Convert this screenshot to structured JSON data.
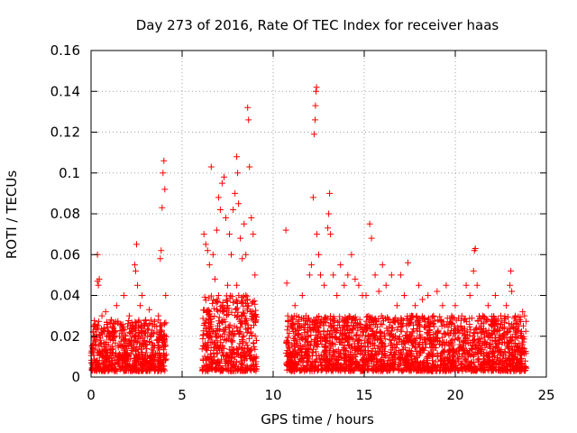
{
  "chart_data": {
    "type": "scatter",
    "title": "Day 273 of 2016, Rate Of TEC Index for receiver haas",
    "xlabel": "GPS time / hours",
    "ylabel": "ROTI / TECUs",
    "xlim": [
      0,
      25
    ],
    "ylim": [
      0,
      0.16
    ],
    "xticks": [
      0,
      5,
      10,
      15,
      20,
      25
    ],
    "xtick_labels": [
      "0",
      "5",
      "10",
      "15",
      "20",
      "25"
    ],
    "yticks": [
      0,
      0.02,
      0.04,
      0.06,
      0.08,
      0.1,
      0.12,
      0.14,
      0.16
    ],
    "ytick_labels": [
      "0",
      "0.02",
      "0.04",
      "0.06",
      "0.08",
      "0.1",
      "0.12",
      "0.14",
      "0.16"
    ],
    "grid": true,
    "marker": "+",
    "color": "#ff0000",
    "series": [
      {
        "name": "ROTI",
        "points": [
          [
            0.1,
            0.012
          ],
          [
            0.2,
            0.025
          ],
          [
            0.3,
            0.008
          ],
          [
            0.35,
            0.047
          ],
          [
            0.4,
            0.045
          ],
          [
            0.45,
            0.048
          ],
          [
            0.5,
            0.018
          ],
          [
            0.6,
            0.03
          ],
          [
            0.7,
            0.015
          ],
          [
            0.8,
            0.032
          ],
          [
            0.9,
            0.01
          ],
          [
            1.0,
            0.02
          ],
          [
            1.1,
            0.028
          ],
          [
            1.2,
            0.012
          ],
          [
            1.3,
            0.022
          ],
          [
            1.4,
            0.035
          ],
          [
            1.5,
            0.01
          ],
          [
            1.6,
            0.026
          ],
          [
            1.7,
            0.015
          ],
          [
            1.8,
            0.04
          ],
          [
            1.9,
            0.02
          ],
          [
            2.0,
            0.012
          ],
          [
            2.1,
            0.03
          ],
          [
            2.2,
            0.018
          ],
          [
            2.3,
            0.025
          ],
          [
            2.4,
            0.055
          ],
          [
            2.45,
            0.052
          ],
          [
            2.5,
            0.065
          ],
          [
            2.55,
            0.045
          ],
          [
            2.6,
            0.02
          ],
          [
            2.7,
            0.035
          ],
          [
            2.8,
            0.04
          ],
          [
            2.9,
            0.015
          ],
          [
            3.0,
            0.028
          ],
          [
            3.1,
            0.01
          ],
          [
            3.2,
            0.033
          ],
          [
            3.3,
            0.02
          ],
          [
            3.4,
            0.012
          ],
          [
            3.5,
            0.025
          ],
          [
            3.6,
            0.018
          ],
          [
            3.7,
            0.03
          ],
          [
            3.8,
            0.058
          ],
          [
            3.85,
            0.062
          ],
          [
            3.9,
            0.083
          ],
          [
            3.95,
            0.1
          ],
          [
            4.0,
            0.106
          ],
          [
            4.05,
            0.092
          ],
          [
            4.1,
            0.04
          ],
          [
            0.35,
            0.06
          ],
          [
            6.2,
            0.07
          ],
          [
            6.3,
            0.065
          ],
          [
            6.4,
            0.062
          ],
          [
            6.5,
            0.055
          ],
          [
            6.6,
            0.103
          ],
          [
            6.7,
            0.06
          ],
          [
            6.8,
            0.048
          ],
          [
            6.9,
            0.072
          ],
          [
            7.0,
            0.088
          ],
          [
            7.1,
            0.082
          ],
          [
            7.2,
            0.095
          ],
          [
            7.3,
            0.098
          ],
          [
            7.4,
            0.078
          ],
          [
            7.5,
            0.045
          ],
          [
            7.6,
            0.07
          ],
          [
            7.7,
            0.06
          ],
          [
            7.8,
            0.082
          ],
          [
            7.9,
            0.09
          ],
          [
            8.0,
            0.108
          ],
          [
            8.05,
            0.1
          ],
          [
            8.1,
            0.085
          ],
          [
            8.2,
            0.068
          ],
          [
            8.3,
            0.058
          ],
          [
            8.4,
            0.075
          ],
          [
            8.5,
            0.06
          ],
          [
            8.6,
            0.132
          ],
          [
            8.65,
            0.126
          ],
          [
            8.7,
            0.103
          ],
          [
            8.8,
            0.078
          ],
          [
            8.9,
            0.07
          ],
          [
            9.0,
            0.05
          ],
          [
            6.5,
            0.03
          ],
          [
            7.0,
            0.04
          ],
          [
            7.5,
            0.035
          ],
          [
            8.0,
            0.045
          ],
          [
            8.5,
            0.04
          ],
          [
            9.0,
            0.03
          ],
          [
            10.7,
            0.072
          ],
          [
            10.75,
            0.046
          ],
          [
            10.8,
            0.03
          ],
          [
            11.0,
            0.025
          ],
          [
            11.2,
            0.035
          ],
          [
            11.4,
            0.028
          ],
          [
            11.6,
            0.04
          ],
          [
            11.8,
            0.03
          ],
          [
            12.0,
            0.05
          ],
          [
            12.1,
            0.055
          ],
          [
            12.2,
            0.088
          ],
          [
            12.25,
            0.119
          ],
          [
            12.3,
            0.126
          ],
          [
            12.32,
            0.133
          ],
          [
            12.35,
            0.14
          ],
          [
            12.38,
            0.142
          ],
          [
            12.4,
            0.07
          ],
          [
            12.5,
            0.06
          ],
          [
            12.6,
            0.05
          ],
          [
            12.8,
            0.045
          ],
          [
            13.0,
            0.073
          ],
          [
            13.05,
            0.08
          ],
          [
            13.1,
            0.09
          ],
          [
            13.15,
            0.07
          ],
          [
            13.3,
            0.05
          ],
          [
            13.5,
            0.04
          ],
          [
            13.7,
            0.055
          ],
          [
            13.9,
            0.045
          ],
          [
            14.1,
            0.05
          ],
          [
            14.3,
            0.06
          ],
          [
            14.5,
            0.048
          ],
          [
            14.7,
            0.045
          ],
          [
            14.9,
            0.04
          ],
          [
            15.1,
            0.04
          ],
          [
            15.3,
            0.075
          ],
          [
            15.4,
            0.068
          ],
          [
            15.6,
            0.05
          ],
          [
            15.8,
            0.042
          ],
          [
            16.0,
            0.055
          ],
          [
            16.2,
            0.045
          ],
          [
            16.5,
            0.05
          ],
          [
            16.8,
            0.035
          ],
          [
            17.0,
            0.05
          ],
          [
            17.2,
            0.04
          ],
          [
            17.4,
            0.056
          ],
          [
            17.6,
            0.03
          ],
          [
            17.8,
            0.035
          ],
          [
            18.0,
            0.045
          ],
          [
            18.2,
            0.038
          ],
          [
            18.5,
            0.04
          ],
          [
            18.8,
            0.03
          ],
          [
            19.0,
            0.042
          ],
          [
            19.3,
            0.035
          ],
          [
            19.5,
            0.045
          ],
          [
            19.8,
            0.03
          ],
          [
            20.0,
            0.035
          ],
          [
            20.3,
            0.025
          ],
          [
            20.6,
            0.045
          ],
          [
            20.8,
            0.04
          ],
          [
            21.0,
            0.052
          ],
          [
            21.05,
            0.062
          ],
          [
            21.1,
            0.063
          ],
          [
            21.2,
            0.045
          ],
          [
            21.5,
            0.03
          ],
          [
            21.8,
            0.035
          ],
          [
            22.0,
            0.025
          ],
          [
            22.2,
            0.04
          ],
          [
            22.5,
            0.03
          ],
          [
            22.8,
            0.035
          ],
          [
            23.0,
            0.045
          ],
          [
            23.05,
            0.052
          ],
          [
            23.1,
            0.042
          ],
          [
            23.3,
            0.03
          ],
          [
            23.5,
            0.025
          ],
          [
            23.7,
            0.032
          ],
          [
            23.8,
            0.03
          ]
        ],
        "dense_bands": [
          {
            "x_range": [
              0.0,
              4.15
            ],
            "y_range": [
              0.003,
              0.028
            ]
          },
          {
            "x_range": [
              6.1,
              9.1
            ],
            "y_range": [
              0.003,
              0.04
            ]
          },
          {
            "x_range": [
              10.7,
              23.9
            ],
            "y_range": [
              0.003,
              0.03
            ]
          }
        ]
      }
    ]
  }
}
